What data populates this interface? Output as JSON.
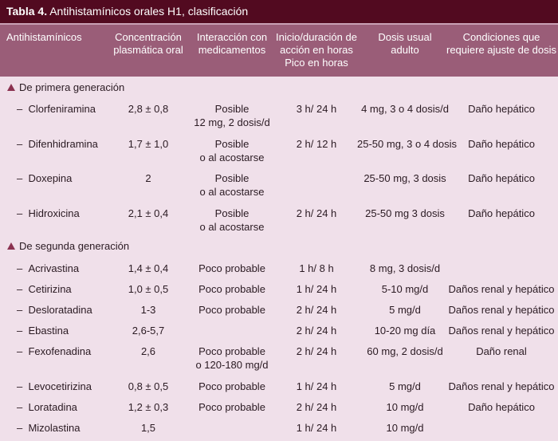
{
  "title": {
    "label": "Tabla 4.",
    "text": "Antihistamínicos orales H1, clasificación"
  },
  "headers": {
    "name": "Antihistamínicos",
    "conc": [
      "Concentración",
      "plasmática oral"
    ],
    "inter": [
      "Interacción con",
      "medicamentos"
    ],
    "onset": [
      "Inicio/duración de",
      "acción en horas",
      "Pico en horas"
    ],
    "dose": [
      "Dosis usual",
      "adulto"
    ],
    "adjust": [
      "Condiciones que",
      "requiere ajuste de dosis"
    ]
  },
  "sections": [
    {
      "title": "De primera generación",
      "rows": [
        {
          "name": "Clorfeniramina",
          "conc": "2,8 ± 0,8",
          "inter": [
            "Posible",
            "12 mg, 2 dosis/d"
          ],
          "onset": "3 h/ 24 h",
          "dose": "4 mg, 3 o 4 dosis/d",
          "adjust": "Daño hepático"
        },
        {
          "name": "Difenhidramina",
          "conc": "1,7 ± 1,0",
          "inter": [
            "Posible",
            "o al acostarse"
          ],
          "onset": "2 h/ 12 h",
          "dose": "25-50 mg, 3 o 4 dosis",
          "adjust": "Daño hepático"
        },
        {
          "name": "Doxepina",
          "conc": "2",
          "inter": [
            "Posible",
            "o al acostarse"
          ],
          "onset": "",
          "dose": "25-50 mg, 3 dosis",
          "adjust": "Daño hepático"
        },
        {
          "name": "Hidroxicina",
          "conc": "2,1 ± 0,4",
          "inter": [
            "Posible",
            "o al acostarse"
          ],
          "onset": "2 h/ 24 h",
          "dose": "25-50 mg 3 dosis",
          "adjust": "Daño hepático"
        }
      ]
    },
    {
      "title": "De segunda generación",
      "rows": [
        {
          "name": "Acrivastina",
          "conc": "1,4 ± 0,4",
          "inter": [
            "Poco probable"
          ],
          "onset": "1 h/ 8 h",
          "dose": "8 mg, 3 dosis/d",
          "adjust": ""
        },
        {
          "name": "Cetirizina",
          "conc": "1,0 ± 0,5",
          "inter": [
            "Poco probable"
          ],
          "onset": "1 h/ 24 h",
          "dose": "5-10 mg/d",
          "adjust": "Daños renal y hepático"
        },
        {
          "name": "Desloratadina",
          "conc": "1-3",
          "inter": [
            "Poco probable"
          ],
          "onset": "2 h/ 24 h",
          "dose": "5 mg/d",
          "adjust": "Daños renal y hepático"
        },
        {
          "name": "Ebastina",
          "conc": "2,6-5,7",
          "inter": [
            ""
          ],
          "onset": "2 h/ 24 h",
          "dose": "10-20 mg día",
          "adjust": "Daños renal y hepático"
        },
        {
          "name": "Fexofenadina",
          "conc": "2,6",
          "inter": [
            "Poco probable",
            "o 120-180 mg/d"
          ],
          "onset": "2 h/ 24 h",
          "dose": "60 mg, 2 dosis/d",
          "adjust": "Daño renal"
        },
        {
          "name": "Levocetirizina",
          "conc": "0,8 ± 0,5",
          "inter": [
            "Poco probable"
          ],
          "onset": "1 h/ 24 h",
          "dose": "5 mg/d",
          "adjust": "Daños renal y hepático"
        },
        {
          "name": "Loratadina",
          "conc": "1,2 ± 0,3",
          "inter": [
            "Poco probable"
          ],
          "onset": "2 h/ 24 h",
          "dose": "10 mg/d",
          "adjust": "Daño hepático"
        },
        {
          "name": "Mizolastina",
          "conc": "1,5",
          "inter": [
            ""
          ],
          "onset": "1 h/ 24 h",
          "dose": "10 mg/d",
          "adjust": ""
        }
      ]
    }
  ],
  "colors": {
    "title_bg": "#520a20",
    "header_bg": "#9a5d78",
    "body_bg": "#f0e0ea",
    "bullet": "#8b3150"
  }
}
